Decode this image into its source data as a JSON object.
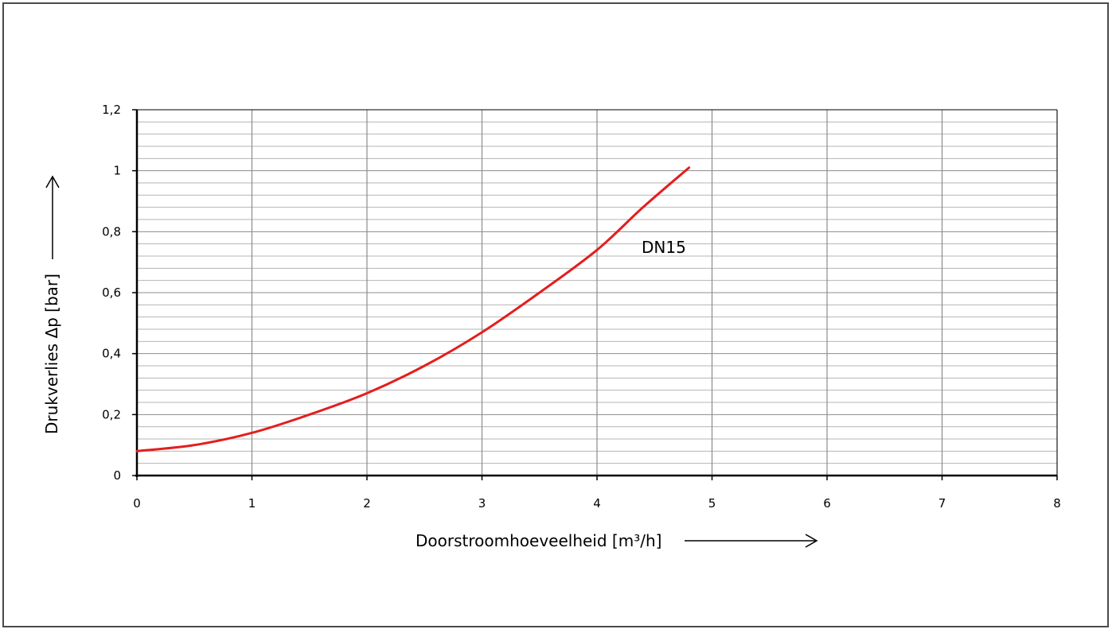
{
  "chart_data": {
    "type": "line",
    "title": "",
    "xlabel": "Doorstroomhoeveelheid [m³/h]",
    "ylabel": "Drukverlies Δp [bar]",
    "xlim": [
      0,
      8
    ],
    "ylim": [
      0,
      1.2
    ],
    "x_ticks": [
      "0",
      "1",
      "2",
      "3",
      "4",
      "5",
      "6",
      "7",
      "8"
    ],
    "y_ticks": [
      "0",
      "0,2",
      "0,4",
      "0,6",
      "0,8",
      "1",
      "1,2"
    ],
    "grid": true,
    "colors": {
      "series": "#e41e1e",
      "grid_major": "#8c8c8c",
      "grid_minor": "#b4b4b4"
    },
    "series": [
      {
        "name": "DN15",
        "x": [
          0,
          0.5,
          1,
          1.5,
          2,
          2.5,
          3,
          3.5,
          4,
          4.4,
          4.8
        ],
        "y": [
          0.08,
          0.1,
          0.14,
          0.2,
          0.27,
          0.36,
          0.47,
          0.6,
          0.74,
          0.88,
          1.01
        ]
      }
    ]
  }
}
